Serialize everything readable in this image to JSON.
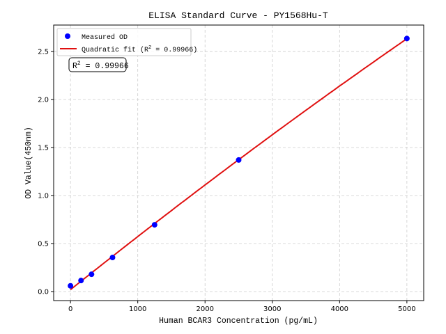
{
  "chart_data": {
    "type": "scatter",
    "title": "ELISA Standard Curve - PY1568Hu-T",
    "xlabel": "Human BCAR3 Concentration (pg/mL)",
    "ylabel": "OD Value(450nm)",
    "xlim": [
      -250,
      5250
    ],
    "ylim": [
      -0.094,
      2.775
    ],
    "xticks": [
      0,
      1000,
      2000,
      3000,
      4000,
      5000
    ],
    "yticks": [
      0.0,
      0.5,
      1.0,
      1.5,
      2.0,
      2.5
    ],
    "ytick_labels": [
      "0.0",
      "0.5",
      "1.0",
      "1.5",
      "2.0",
      "2.5"
    ],
    "grid": true,
    "legend_placement": "top-left",
    "series": [
      {
        "name": "Measured OD",
        "kind": "scatter",
        "color": "#0000ff",
        "x": [
          0,
          156.25,
          312.5,
          625,
          1250,
          2500,
          5000
        ],
        "y": [
          0.06,
          0.115,
          0.18,
          0.355,
          0.695,
          1.37,
          2.635
        ]
      },
      {
        "name": "Quadratic fit (R² = 0.99966)",
        "name_prefix": "Quadratic fit (R",
        "name_suffix": " = 0.99966)",
        "kind": "line",
        "color": "#e01010",
        "coefficients": {
          "a": -7.5e-09,
          "b": 0.00056,
          "c": 0.02
        }
      }
    ],
    "annotation": {
      "prefix": "R",
      "sup": "2",
      "suffix": " = 0.99966"
    }
  }
}
